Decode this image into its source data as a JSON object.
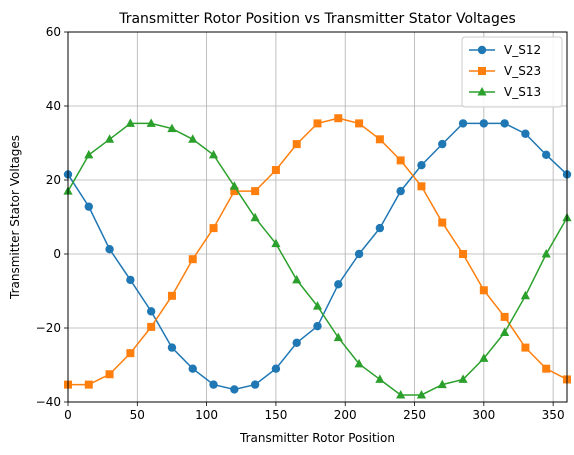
{
  "chart_data": {
    "type": "line",
    "title": "Transmitter Rotor Position vs Transmitter Stator Voltages",
    "xlabel": "Transmitter Rotor Position",
    "ylabel": "Transmitter Stator Voltages",
    "xlim": [
      0,
      360
    ],
    "ylim": [
      -40,
      60
    ],
    "xticks": [
      0,
      50,
      100,
      150,
      200,
      250,
      300,
      350
    ],
    "yticks": [
      -40,
      -20,
      0,
      20,
      40,
      60
    ],
    "grid": true,
    "legend_position": "top-right",
    "x": [
      0,
      15,
      30,
      45,
      60,
      75,
      90,
      105,
      120,
      135,
      150,
      165,
      180,
      195,
      210,
      225,
      240,
      255,
      270,
      285,
      300,
      315,
      330,
      345,
      360
    ],
    "series": [
      {
        "name": "V_S12",
        "color": "#1f77b4",
        "marker": "circle",
        "values": [
          21.5,
          12.8,
          1.3,
          -7.0,
          -15.5,
          -25.3,
          -31.0,
          -35.3,
          -36.6,
          -35.3,
          -31.0,
          -24.0,
          -19.5,
          -8.2,
          0.0,
          7.0,
          17.0,
          24.0,
          29.7,
          35.3,
          35.3,
          35.3,
          32.5,
          26.8,
          21.5
        ]
      },
      {
        "name": "V_S23",
        "color": "#ff7f0e",
        "marker": "square",
        "values": [
          -35.3,
          -35.3,
          -32.5,
          -26.8,
          -19.7,
          -11.3,
          -1.4,
          7.0,
          17.0,
          17.0,
          22.7,
          29.7,
          35.3,
          36.7,
          35.3,
          31.0,
          25.3,
          18.3,
          8.5,
          0.0,
          -9.8,
          -17.0,
          -25.3,
          -31.0,
          -33.9
        ]
      },
      {
        "name": "V_S13",
        "color": "#2ca02c",
        "marker": "triangle",
        "values": [
          17.0,
          26.8,
          31.0,
          35.3,
          35.3,
          33.9,
          31.0,
          26.8,
          18.3,
          9.8,
          2.8,
          -7.0,
          -14.1,
          -22.6,
          -29.7,
          -33.9,
          -38.1,
          -38.1,
          -35.3,
          -33.9,
          -28.2,
          -21.2,
          -11.3,
          0.0,
          9.8
        ]
      }
    ]
  }
}
